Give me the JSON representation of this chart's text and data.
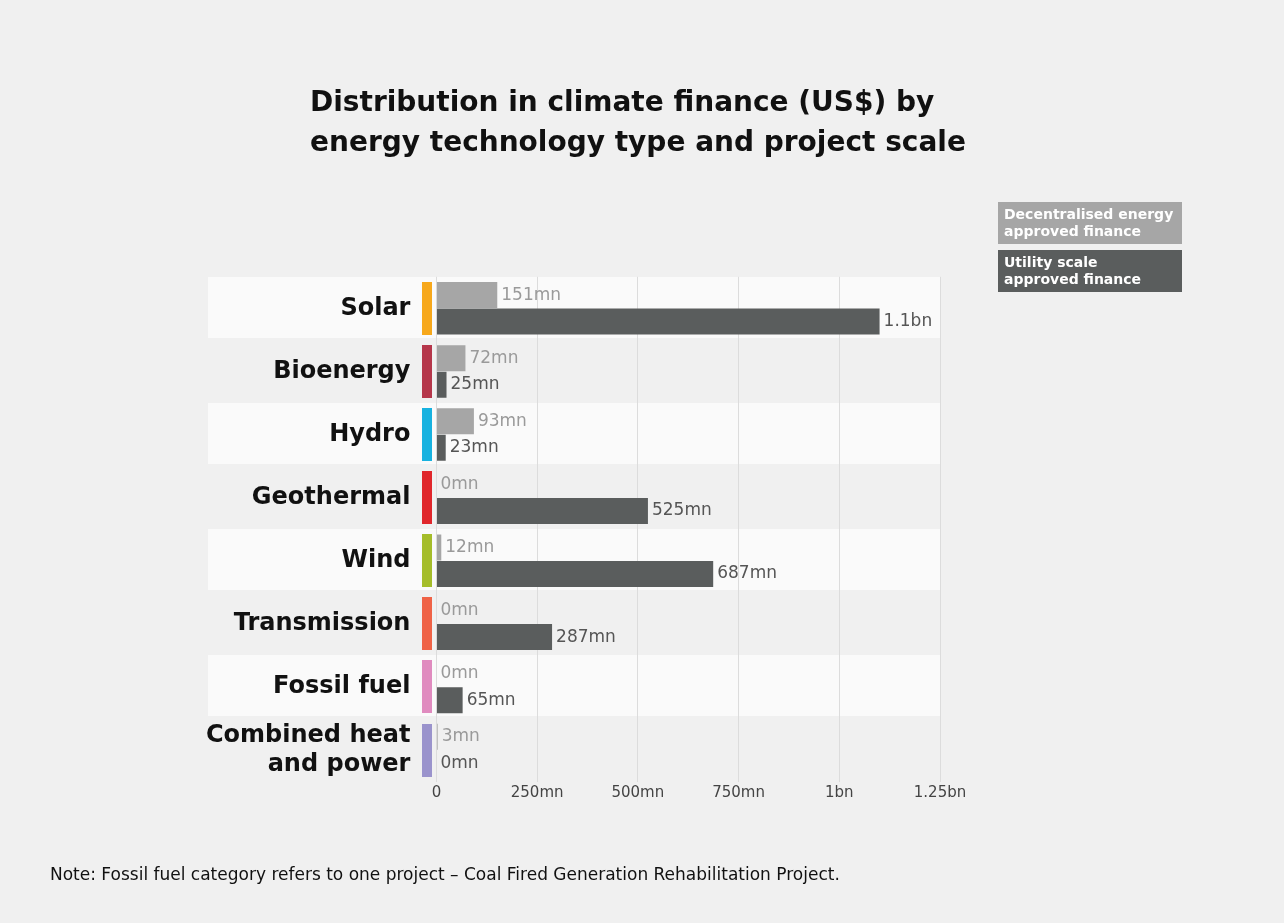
{
  "chart_data": {
    "type": "bar",
    "orientation": "horizontal",
    "title": "Distribution in climate finance (US$) by energy technology type and project scale",
    "categories": [
      "Solar",
      "Bioenergy",
      "Hydro",
      "Geothermal",
      "Wind",
      "Transmission",
      "Fossil fuel",
      "Combined heat and power"
    ],
    "series": [
      {
        "name": "Decentralised energy approved finance",
        "color": "#a6a6a6",
        "values": [
          151000000,
          72000000,
          93000000,
          0,
          12000000,
          0,
          0,
          3000000
        ],
        "value_labels": [
          "151mn",
          "72mn",
          "93mn",
          "0mn",
          "12mn",
          "0mn",
          "0mn",
          "3mn"
        ]
      },
      {
        "name": "Utility scale approved finance",
        "color": "#5a5d5d",
        "values": [
          1100000000,
          25000000,
          23000000,
          525000000,
          687000000,
          287000000,
          65000000,
          0
        ],
        "value_labels": [
          "1.1bn",
          "25mn",
          "23mn",
          "525mn",
          "687mn",
          "287mn",
          "65mn",
          "0mn"
        ]
      }
    ],
    "xlim": [
      0,
      1250000000
    ],
    "xticks": [
      0,
      {
        "value": 250000000,
        "label": "250mn"
      },
      {
        "value": 500000000,
        "label": "500mn"
      },
      {
        "value": 750000000,
        "label": "750mn"
      },
      {
        "value": 1000000000,
        "label": "1bn"
      },
      {
        "value": 1250000000,
        "label": "1.25bn"
      }
    ],
    "grid": "x",
    "legend": "top right",
    "annotations": [
      "Note: Fossil fuel category refers to one project – Coal Fired Generation Rehabilitation Project."
    ]
  }
}
